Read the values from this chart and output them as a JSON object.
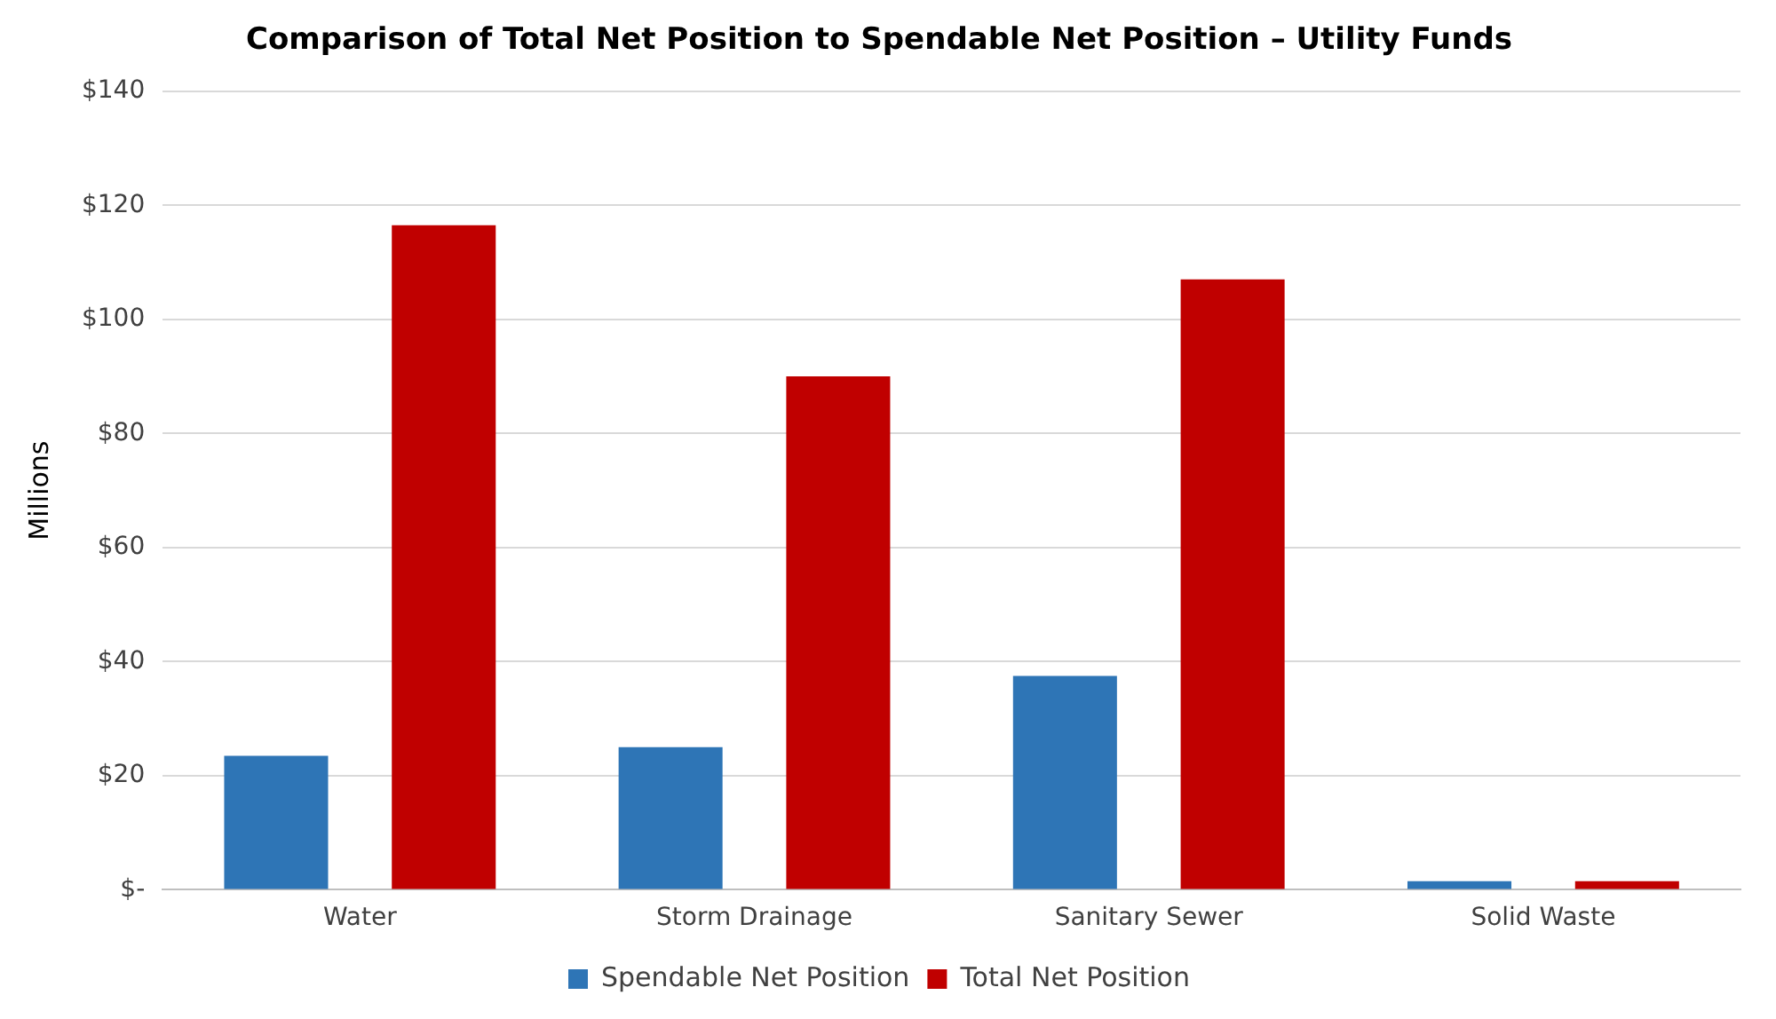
{
  "chart_data": {
    "type": "bar",
    "title": "Comparison of Total Net Position to Spendable Net Position – Utility Funds",
    "ylabel": "Millions",
    "categories": [
      "Water",
      "Storm Drainage",
      "Sanitary Sewer",
      "Solid Waste"
    ],
    "series": [
      {
        "name": "Spendable Net Position",
        "color": "#2e75b6",
        "values": [
          23.5,
          25,
          37.5,
          1.5
        ]
      },
      {
        "name": "Total Net Position",
        "color": "#c00000",
        "values": [
          116.5,
          90,
          107,
          1.5
        ]
      }
    ],
    "ylim": [
      0,
      140
    ],
    "yticks": [
      {
        "value": 0,
        "label": "$-"
      },
      {
        "value": 20,
        "label": "$20"
      },
      {
        "value": 40,
        "label": "$40"
      },
      {
        "value": 60,
        "label": "$60"
      },
      {
        "value": 80,
        "label": "$80"
      },
      {
        "value": 100,
        "label": "$100"
      },
      {
        "value": 120,
        "label": "$120"
      },
      {
        "value": 140,
        "label": "$140"
      }
    ],
    "grid": "y",
    "legend": "bottom"
  }
}
